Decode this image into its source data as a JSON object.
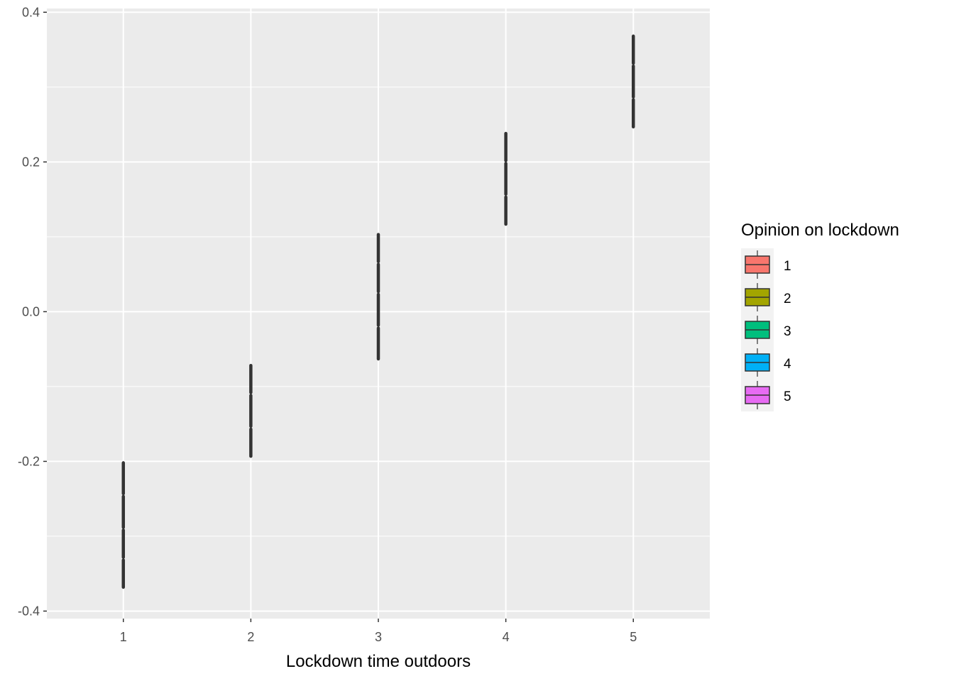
{
  "chart_data": {
    "type": "box",
    "xlabel": "Lockdown time outdoors",
    "ylabel": "",
    "x_categories": [
      "1",
      "2",
      "3",
      "4",
      "5"
    ],
    "ylim": [
      -0.41,
      0.405
    ],
    "y_ticks": [
      -0.4,
      -0.2,
      0.0,
      0.2,
      0.4
    ],
    "y_tick_labels": [
      "-0.4",
      "-0.2",
      "0.0",
      "0.2",
      "0.4"
    ],
    "grid": true,
    "legend": {
      "title": "Opinion on lockdown",
      "position": "right",
      "entries": [
        {
          "label": "1",
          "color": "#F8766D"
        },
        {
          "label": "2",
          "color": "#A3A500"
        },
        {
          "label": "3",
          "color": "#00BF7D"
        },
        {
          "label": "4",
          "color": "#00B0F6"
        },
        {
          "label": "5",
          "color": "#E76BF3"
        }
      ]
    },
    "groups": [
      {
        "x": "1",
        "boxes": [
          {
            "opinion": "1",
            "y": [
              -0.37,
              -0.33
            ]
          },
          {
            "opinion": "2",
            "y": [
              -0.33,
              -0.29
            ]
          },
          {
            "opinion": "3",
            "y": [
              -0.29,
              -0.245
            ]
          },
          {
            "opinion": "4",
            "y": [
              -0.245,
              -0.2
            ]
          }
        ]
      },
      {
        "x": "2",
        "boxes": [
          {
            "opinion": "1",
            "y": [
              -0.195,
              -0.155
            ]
          },
          {
            "opinion": "2",
            "y": [
              -0.155,
              -0.11
            ]
          },
          {
            "opinion": "3",
            "y": [
              -0.11,
              -0.07
            ]
          }
        ]
      },
      {
        "x": "3",
        "boxes": [
          {
            "opinion": "1",
            "y": [
              -0.065,
              -0.02
            ]
          },
          {
            "opinion": "2",
            "y": [
              -0.02,
              0.025
            ]
          },
          {
            "opinion": "3",
            "y": [
              0.025,
              0.065
            ]
          },
          {
            "opinion": "4",
            "y": [
              0.065,
              0.105
            ]
          }
        ]
      },
      {
        "x": "4",
        "boxes": [
          {
            "opinion": "1",
            "y": [
              0.115,
              0.155
            ]
          },
          {
            "opinion": "2",
            "y": [
              0.155,
              0.2
            ]
          },
          {
            "opinion": "3",
            "y": [
              0.2,
              0.24
            ]
          }
        ]
      },
      {
        "x": "5",
        "boxes": [
          {
            "opinion": "1",
            "y": [
              0.245,
              0.285
            ]
          },
          {
            "opinion": "2",
            "y": [
              0.285,
              0.33
            ]
          },
          {
            "opinion": "3",
            "y": [
              0.33,
              0.37
            ]
          }
        ]
      }
    ]
  }
}
